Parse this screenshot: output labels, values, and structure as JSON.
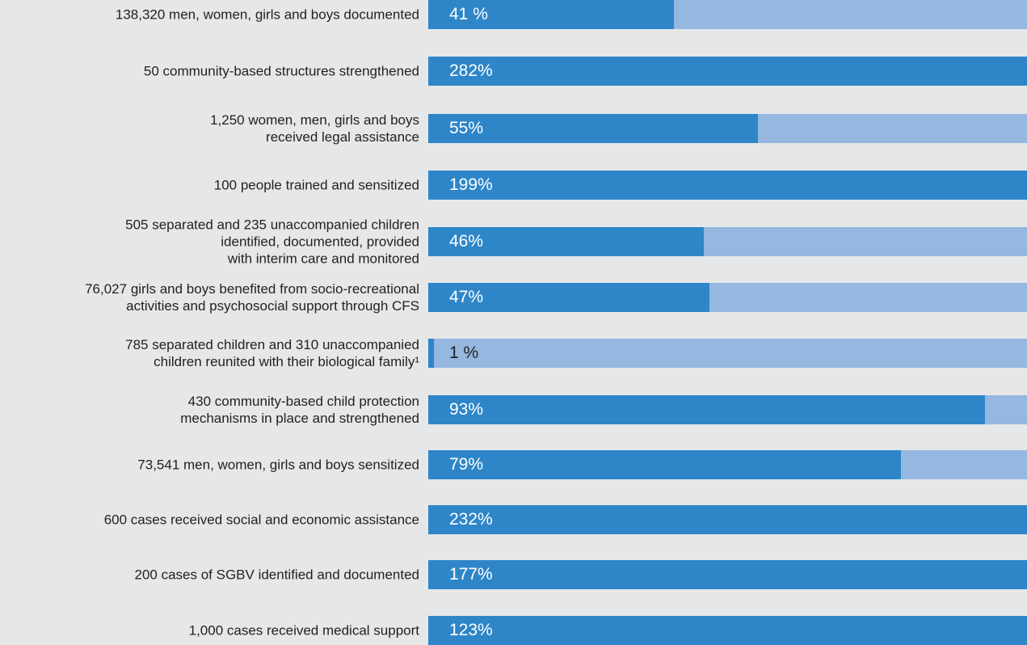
{
  "colors": {
    "background": "#e6e7e8",
    "achieved": "#2e86c8",
    "remaining": "#95b7e0",
    "label_text": "#231f20",
    "percent_text_light": "#ffffff",
    "percent_text_dark": "#231f20"
  },
  "chart_data": {
    "type": "bar",
    "orientation": "horizontal",
    "stacked_to_100": true,
    "xlim": [
      0,
      100
    ],
    "grid": false,
    "categories": [
      "138,320 men, women, girls and boys documented",
      "50 community-based structures strengthened",
      "1,250 women, men, girls and boys\nreceived legal assistance",
      "100 people trained and sensitized",
      "505 separated and 235 unaccompanied children\nidentified, documented, provided\nwith interim care and monitored",
      "76,027 girls and boys benefited from socio-recreational\nactivities and psychosocial support through CFS",
      "785 separated children and 310 unaccompanied\nchildren reunited with their biological family¹",
      "430 community-based child protection\nmechanisms in place and strengthened",
      "73,541 men, women, girls and boys sensitized",
      "600 cases received social and economic assistance",
      "200 cases of SGBV identified and documented",
      "1,000 cases received medical support"
    ],
    "values": [
      41,
      282,
      55,
      199,
      46,
      47,
      1,
      93,
      79,
      232,
      177,
      123
    ],
    "data_labels": [
      "41 %",
      "282%",
      "55%",
      "199%",
      "46%",
      "47%",
      "1 %",
      "93%",
      "79%",
      "232%",
      "177%",
      "123%"
    ]
  }
}
